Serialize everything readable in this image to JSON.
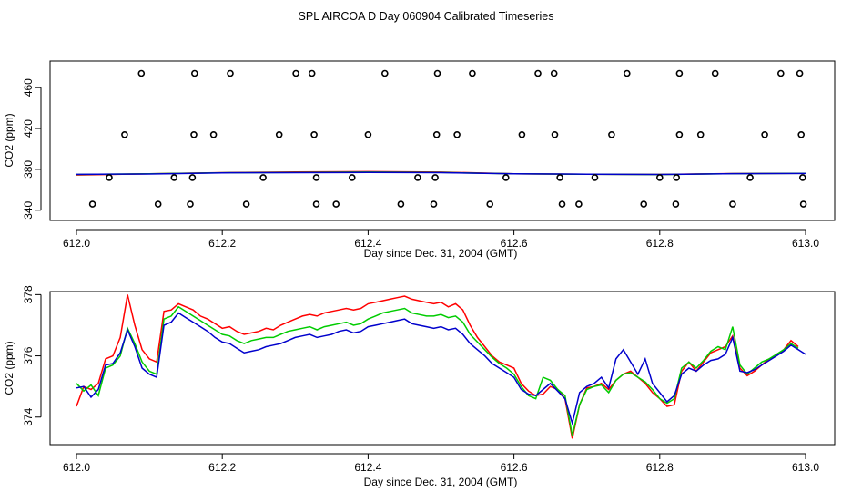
{
  "figure_title": "SPL AIRCOA D  Day 060904  Calibrated Timeseries",
  "chart_data": [
    {
      "type": "scatter",
      "title": "SPL AIRCOA D  Day 060904  Calibrated Timeseries",
      "xlabel": "Day since Dec. 31, 2004 (GMT)",
      "ylabel": "CO2 (ppm)",
      "xlim": [
        612.0,
        613.0
      ],
      "ylim": [
        330,
        486
      ],
      "x_ticks": [
        612.0,
        612.2,
        612.4,
        612.6,
        612.8,
        613.0
      ],
      "x_tick_labels": [
        "612.0",
        "612.2",
        "612.4",
        "612.6",
        "612.8",
        "613.0"
      ],
      "y_ticks": [
        340,
        380,
        420,
        460
      ],
      "y_tick_labels": [
        "340",
        "380",
        "420",
        "460"
      ],
      "points": {
        "x": [
          612.089,
          612.162,
          612.211,
          612.301,
          612.323,
          612.423,
          612.495,
          612.543,
          612.633,
          612.655,
          612.755,
          612.827,
          612.876,
          612.966,
          612.992,
          612.066,
          612.161,
          612.188,
          612.278,
          612.326,
          612.4,
          612.494,
          612.522,
          612.611,
          612.656,
          612.734,
          612.827,
          612.856,
          612.944,
          612.994,
          612.045,
          612.134,
          612.159,
          612.256,
          612.329,
          612.378,
          612.468,
          612.492,
          612.589,
          612.663,
          612.711,
          612.8,
          612.823,
          612.924,
          612.996,
          612.022,
          612.112,
          612.156,
          612.233,
          612.329,
          612.356,
          612.445,
          612.49,
          612.567,
          612.666,
          612.689,
          612.778,
          612.822,
          612.9,
          612.997
        ],
        "y": [
          474,
          474,
          474,
          474,
          474,
          474,
          474,
          474,
          474,
          474,
          474,
          474,
          474,
          474,
          474,
          414,
          414,
          414,
          414,
          414,
          414,
          414,
          414,
          414,
          414,
          414,
          414,
          414,
          414,
          414,
          372,
          372,
          372,
          372,
          372,
          372,
          372,
          372,
          372,
          372,
          372,
          372,
          372,
          372,
          372,
          346,
          346,
          346,
          346,
          346,
          346,
          346,
          346,
          346,
          346,
          346,
          346,
          346,
          346,
          346
        ]
      },
      "series": [
        {
          "name": "red",
          "color": "#ff0000",
          "x": [
            612.0,
            612.1,
            612.2,
            612.3,
            612.4,
            612.5,
            612.6,
            612.7,
            612.8,
            612.9,
            613.0
          ],
          "values": [
            374.5,
            375.6,
            376.8,
            377.4,
            377.8,
            377.3,
            375.7,
            375.2,
            375.0,
            375.9,
            376.2
          ]
        },
        {
          "name": "green",
          "color": "#00cc00",
          "x": [
            612.0,
            612.1,
            612.2,
            612.3,
            612.4,
            612.5,
            612.6,
            612.7,
            612.8,
            612.9,
            613.0
          ],
          "values": [
            375.0,
            375.6,
            376.7,
            377.0,
            377.3,
            377.0,
            375.6,
            375.2,
            374.9,
            375.8,
            376.1
          ]
        },
        {
          "name": "blue",
          "color": "#0000cc",
          "x": [
            612.0,
            612.1,
            612.2,
            612.3,
            612.4,
            612.5,
            612.6,
            612.7,
            612.8,
            612.9,
            613.0
          ],
          "values": [
            375.1,
            375.5,
            376.6,
            376.8,
            377.0,
            376.8,
            375.6,
            375.3,
            375.0,
            375.8,
            376.0
          ]
        }
      ]
    },
    {
      "type": "line",
      "title": "",
      "xlabel": "Day since Dec. 31, 2004 (GMT)",
      "ylabel": "CO2 (ppm)",
      "xlim": [
        612.0,
        613.0
      ],
      "ylim": [
        373.1,
        378.1
      ],
      "x_ticks": [
        612.0,
        612.2,
        612.4,
        612.6,
        612.8,
        613.0
      ],
      "x_tick_labels": [
        "612.0",
        "612.2",
        "612.4",
        "612.6",
        "612.8",
        "613.0"
      ],
      "y_ticks": [
        374,
        376,
        378
      ],
      "y_tick_labels": [
        "374",
        "376",
        "378"
      ],
      "series": [
        {
          "name": "red",
          "color": "#ff0000",
          "x": [
            612.0,
            612.01,
            612.02,
            612.03,
            612.04,
            612.05,
            612.06,
            612.07,
            612.08,
            612.09,
            612.1,
            612.11,
            612.12,
            612.13,
            612.14,
            612.15,
            612.16,
            612.17,
            612.18,
            612.19,
            612.2,
            612.21,
            612.22,
            612.23,
            612.24,
            612.25,
            612.26,
            612.27,
            612.28,
            612.29,
            612.3,
            612.31,
            612.32,
            612.33,
            612.34,
            612.35,
            612.36,
            612.37,
            612.38,
            612.39,
            612.4,
            612.41,
            612.42,
            612.43,
            612.44,
            612.45,
            612.46,
            612.47,
            612.48,
            612.49,
            612.5,
            612.51,
            612.52,
            612.53,
            612.54,
            612.55,
            612.56,
            612.57,
            612.58,
            612.59,
            612.6,
            612.61,
            612.62,
            612.63,
            612.64,
            612.65,
            612.66,
            612.67,
            612.68,
            612.69,
            612.7,
            612.71,
            612.72,
            612.73,
            612.74,
            612.75,
            612.76,
            612.77,
            612.78,
            612.79,
            612.8,
            612.81,
            612.82,
            612.83,
            612.84,
            612.85,
            612.86,
            612.87,
            612.88,
            612.89,
            612.9,
            612.91,
            612.92,
            612.93,
            612.94,
            612.95,
            612.96,
            612.97,
            612.98,
            612.99
          ],
          "values": [
            374.35,
            375.0,
            374.9,
            375.1,
            375.9,
            376.0,
            376.6,
            378.0,
            377.0,
            376.2,
            375.9,
            375.8,
            377.45,
            377.5,
            377.7,
            377.6,
            377.5,
            377.3,
            377.2,
            377.05,
            376.9,
            376.95,
            376.8,
            376.7,
            376.75,
            376.8,
            376.9,
            376.85,
            377.0,
            377.1,
            377.2,
            377.3,
            377.35,
            377.3,
            377.4,
            377.45,
            377.5,
            377.55,
            377.5,
            377.55,
            377.7,
            377.75,
            377.8,
            377.85,
            377.9,
            377.95,
            377.85,
            377.8,
            377.75,
            377.7,
            377.75,
            377.6,
            377.7,
            377.5,
            377.0,
            376.6,
            376.3,
            376.0,
            375.8,
            375.7,
            375.6,
            375.1,
            374.85,
            374.7,
            374.75,
            375.0,
            374.9,
            374.6,
            373.3,
            374.4,
            374.95,
            375.0,
            375.1,
            374.9,
            375.2,
            375.4,
            375.5,
            375.3,
            375.1,
            374.8,
            374.6,
            374.35,
            374.4,
            375.5,
            375.8,
            375.5,
            375.8,
            376.1,
            376.2,
            376.3,
            376.65,
            375.6,
            375.35,
            375.5,
            375.7,
            375.9,
            376.0,
            376.2,
            376.5,
            376.3
          ]
        },
        {
          "name": "green",
          "color": "#00cc00",
          "x": [
            612.0,
            612.01,
            612.02,
            612.03,
            612.04,
            612.05,
            612.06,
            612.07,
            612.08,
            612.09,
            612.1,
            612.11,
            612.12,
            612.13,
            612.14,
            612.15,
            612.16,
            612.17,
            612.18,
            612.19,
            612.2,
            612.21,
            612.22,
            612.23,
            612.24,
            612.25,
            612.26,
            612.27,
            612.28,
            612.29,
            612.3,
            612.31,
            612.32,
            612.33,
            612.34,
            612.35,
            612.36,
            612.37,
            612.38,
            612.39,
            612.4,
            612.41,
            612.42,
            612.43,
            612.44,
            612.45,
            612.46,
            612.47,
            612.48,
            612.49,
            612.5,
            612.51,
            612.52,
            612.53,
            612.54,
            612.55,
            612.56,
            612.57,
            612.58,
            612.59,
            612.6,
            612.61,
            612.62,
            612.63,
            612.64,
            612.65,
            612.66,
            612.67,
            612.68,
            612.69,
            612.7,
            612.71,
            612.72,
            612.73,
            612.74,
            612.75,
            612.76,
            612.77,
            612.78,
            612.79,
            612.8,
            612.81,
            612.82,
            612.83,
            612.84,
            612.85,
            612.86,
            612.87,
            612.88,
            612.89,
            612.9,
            612.91,
            612.92,
            612.93,
            612.94,
            612.95,
            612.96,
            612.97,
            612.98,
            612.99
          ],
          "values": [
            375.1,
            374.85,
            375.05,
            374.7,
            375.6,
            375.7,
            376.0,
            376.9,
            376.4,
            375.8,
            375.5,
            375.4,
            377.2,
            377.3,
            377.6,
            377.45,
            377.3,
            377.15,
            377.0,
            376.85,
            376.7,
            376.65,
            376.5,
            376.4,
            376.5,
            376.55,
            376.6,
            376.6,
            376.7,
            376.8,
            376.85,
            376.9,
            376.95,
            376.85,
            376.95,
            377.0,
            377.05,
            377.1,
            377.0,
            377.05,
            377.2,
            377.3,
            377.4,
            377.45,
            377.5,
            377.55,
            377.4,
            377.35,
            377.3,
            377.3,
            377.35,
            377.25,
            377.3,
            377.1,
            376.7,
            376.45,
            376.2,
            375.95,
            375.75,
            375.6,
            375.4,
            375.0,
            374.7,
            374.6,
            375.3,
            375.2,
            374.9,
            374.7,
            373.4,
            374.4,
            374.9,
            375.0,
            375.05,
            374.8,
            375.2,
            375.4,
            375.45,
            375.3,
            375.15,
            374.9,
            374.6,
            374.45,
            374.6,
            375.6,
            375.8,
            375.6,
            375.85,
            376.15,
            376.3,
            376.2,
            376.95,
            375.7,
            375.4,
            375.6,
            375.8,
            375.9,
            376.05,
            376.2,
            376.4,
            376.25
          ]
        },
        {
          "name": "blue",
          "color": "#0000cc",
          "x": [
            612.0,
            612.01,
            612.02,
            612.03,
            612.04,
            612.05,
            612.06,
            612.07,
            612.08,
            612.09,
            612.1,
            612.11,
            612.12,
            612.13,
            612.14,
            612.15,
            612.16,
            612.17,
            612.18,
            612.19,
            612.2,
            612.21,
            612.22,
            612.23,
            612.24,
            612.25,
            612.26,
            612.27,
            612.28,
            612.29,
            612.3,
            612.31,
            612.32,
            612.33,
            612.34,
            612.35,
            612.36,
            612.37,
            612.38,
            612.39,
            612.4,
            612.41,
            612.42,
            612.43,
            612.44,
            612.45,
            612.46,
            612.47,
            612.48,
            612.49,
            612.5,
            612.51,
            612.52,
            612.53,
            612.54,
            612.55,
            612.56,
            612.57,
            612.58,
            612.59,
            612.6,
            612.61,
            612.62,
            612.63,
            612.64,
            612.65,
            612.66,
            612.67,
            612.68,
            612.69,
            612.7,
            612.71,
            612.72,
            612.73,
            612.74,
            612.75,
            612.76,
            612.77,
            612.78,
            612.79,
            612.8,
            612.81,
            612.82,
            612.83,
            612.84,
            612.85,
            612.86,
            612.87,
            612.88,
            612.89,
            612.9,
            612.91,
            612.92,
            612.93,
            612.94,
            612.95,
            612.96,
            612.97,
            612.98,
            612.99,
            613.0
          ],
          "values": [
            374.95,
            375.0,
            374.65,
            374.9,
            375.7,
            375.75,
            376.1,
            376.85,
            376.3,
            375.6,
            375.4,
            375.3,
            377.0,
            377.1,
            377.4,
            377.25,
            377.1,
            376.95,
            376.8,
            376.6,
            376.45,
            376.4,
            376.25,
            376.1,
            376.15,
            376.2,
            376.3,
            376.35,
            376.4,
            376.5,
            376.6,
            376.65,
            376.7,
            376.6,
            376.65,
            376.7,
            376.8,
            376.85,
            376.75,
            376.8,
            376.95,
            377.0,
            377.05,
            377.1,
            377.15,
            377.2,
            377.05,
            377.0,
            376.95,
            376.9,
            376.95,
            376.85,
            376.9,
            376.7,
            376.4,
            376.2,
            376.0,
            375.75,
            375.6,
            375.45,
            375.3,
            374.9,
            374.75,
            374.7,
            374.9,
            375.1,
            374.85,
            374.6,
            373.8,
            374.8,
            375.0,
            375.1,
            375.3,
            374.95,
            375.9,
            376.2,
            375.8,
            375.4,
            375.9,
            375.1,
            374.8,
            374.5,
            374.7,
            375.4,
            375.6,
            375.5,
            375.7,
            375.85,
            375.9,
            376.05,
            376.6,
            375.5,
            375.45,
            375.55,
            375.7,
            375.85,
            376.0,
            376.15,
            376.35,
            376.2,
            376.05
          ]
        }
      ]
    }
  ]
}
